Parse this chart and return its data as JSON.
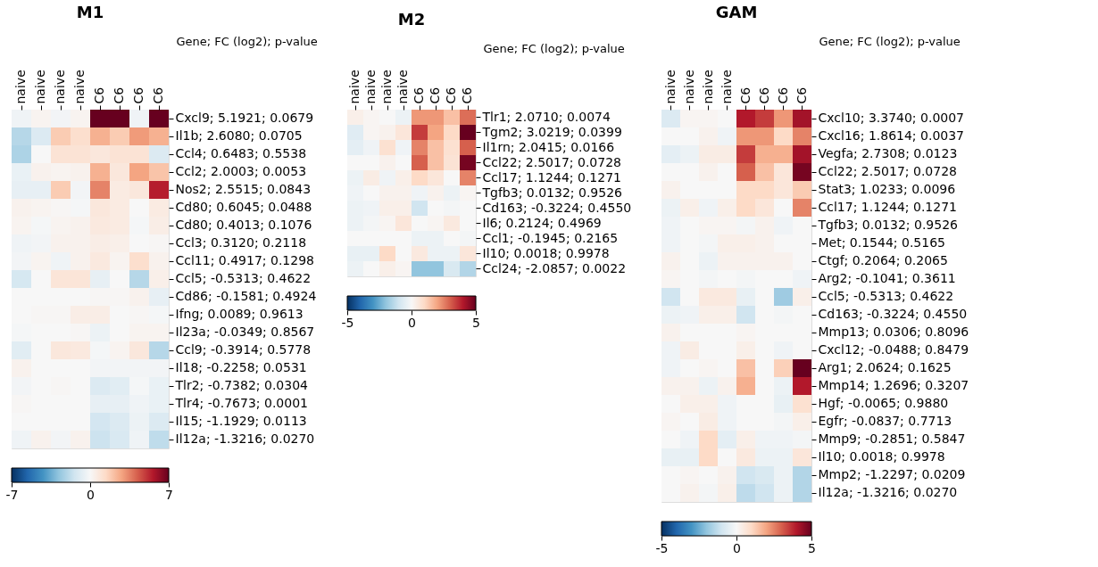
{
  "chart_data": [
    {
      "type": "heatmap",
      "title": "M1",
      "ylabel": "Gene; FC (log2); p-value",
      "categories": [
        "naive",
        "naive",
        "naive",
        "naive",
        "C6",
        "C6",
        "C6",
        "C6"
      ],
      "y_categories": [
        "Cxcl9; 5.1921; 0.0679",
        "Il1b; 2.6080; 0.0705",
        "Ccl4; 0.6483; 0.5538",
        "Ccl2; 2.0003; 0.0053",
        "Nos2; 2.5515; 0.0843",
        "Cd80; 0.6045; 0.0488",
        "Cd80; 0.4013; 0.1076",
        "Ccl3; 0.3120; 0.2118",
        "Ccl11; 0.4917; 0.1298",
        "Ccl5; -0.5313; 0.4622",
        "Cd86; -0.1581; 0.4924",
        "Ifng; 0.0089; 0.9613",
        "Il23a; -0.0349; 0.8567",
        "Ccl9; -0.3914; 0.5778",
        "Il18; -0.2258; 0.0531",
        "Tlr2; -0.7382; 0.0304",
        "Tlr4; -0.7673; 0.0001",
        "Il15; -1.1929; 0.0113",
        "Il12a; -1.3216; 0.0270"
      ],
      "cells": [
        [
          -0.3,
          0.2,
          -0.2,
          0.2,
          7,
          7,
          -0.3,
          7
        ],
        [
          -2,
          -1,
          1.8,
          1.2,
          2.5,
          1.8,
          3,
          2.5
        ],
        [
          -2.2,
          0,
          1,
          1,
          0.8,
          1,
          1,
          -1
        ],
        [
          -0.5,
          0.3,
          0.2,
          0.3,
          2.5,
          0.8,
          2.8,
          2
        ],
        [
          -0.6,
          -0.6,
          1.8,
          -0.2,
          3.5,
          0.6,
          0.8,
          5.5
        ],
        [
          0.3,
          0.2,
          0.1,
          -0.1,
          0.8,
          0.6,
          0,
          0.6
        ],
        [
          0.2,
          -0.1,
          0.2,
          0.3,
          0.7,
          0.6,
          -0.1,
          0.5
        ],
        [
          -0.3,
          -0.2,
          0.3,
          0.3,
          0.5,
          0.4,
          0,
          0.1
        ],
        [
          -0.2,
          0.2,
          -0.3,
          0.3,
          0.7,
          0.2,
          1.2,
          0.3
        ],
        [
          -1.2,
          0,
          0.9,
          0.9,
          -0.6,
          0,
          -2,
          0.4
        ],
        [
          0,
          0,
          0,
          0,
          0.1,
          0.1,
          0.3,
          -0.6
        ],
        [
          0,
          0.1,
          0.1,
          0.5,
          0.5,
          0,
          0.1,
          -0.1
        ],
        [
          -0.1,
          0,
          0,
          0.1,
          -0.4,
          0,
          0.2,
          0.2
        ],
        [
          -0.8,
          0,
          0.8,
          0.7,
          -0.1,
          0.2,
          0.8,
          -2
        ],
        [
          0.3,
          0,
          0,
          0,
          -0.2,
          -0.2,
          -0.2,
          -0.2
        ],
        [
          -0.2,
          0,
          0.1,
          0,
          -1,
          -0.8,
          -0.1,
          -0.5
        ],
        [
          0.1,
          0,
          0,
          0,
          -0.6,
          -0.6,
          -0.3,
          -0.5
        ],
        [
          0,
          0,
          0,
          0,
          -1.3,
          -1,
          -0.4,
          -1
        ],
        [
          -0.3,
          0.3,
          -0.2,
          0.3,
          -1.5,
          -1.1,
          -0.3,
          -1.8
        ]
      ],
      "clim": [
        -7,
        7
      ],
      "cticks": [
        -7,
        0,
        7
      ]
    },
    {
      "type": "heatmap",
      "title": "M2",
      "ylabel": "Gene; FC (log2); p-value",
      "categories": [
        "naive",
        "naive",
        "naive",
        "naive",
        "C6",
        "C6",
        "C6",
        "C6"
      ],
      "y_categories": [
        "Tlr1; 2.0710; 0.0074",
        "Tgm2; 3.0219; 0.0399",
        "Il1rn; 2.0415; 0.0166",
        "Ccl22; 2.5017; 0.0728",
        "Ccl17; 1.1244; 0.1271",
        "Tgfb3; 0.0132; 0.9526",
        "Cd163; -0.3224; 0.4550",
        "Il6; 0.2124; 0.4969",
        "Ccl1; -0.1945; 0.2165",
        "Il10; 0.0018; 0.9978",
        "Ccl24; -2.0857; 0.0022"
      ],
      "cells": [
        [
          0.3,
          0.1,
          0,
          -0.3,
          2.2,
          2.2,
          1.5,
          2.8
        ],
        [
          -0.6,
          0.1,
          0.2,
          0.6,
          3.5,
          2,
          1,
          5
        ],
        [
          -0.5,
          -0.2,
          0.8,
          -0.2,
          2.5,
          1.5,
          0.8,
          3
        ],
        [
          0,
          0,
          0.2,
          0,
          3,
          1.5,
          0.7,
          4.8
        ],
        [
          -0.3,
          0.4,
          -0.2,
          0.3,
          1,
          0.6,
          0,
          2.5
        ],
        [
          -0.2,
          0,
          0.2,
          0.2,
          -0.2,
          0.2,
          -0.3,
          0.1
        ],
        [
          -0.3,
          -0.2,
          0.3,
          0.3,
          -1,
          0,
          -0.1,
          0
        ],
        [
          -0.3,
          -0.1,
          0.1,
          0.6,
          0,
          0.1,
          0.5,
          0
        ],
        [
          0,
          0,
          0,
          0,
          -0.3,
          -0.3,
          0,
          -0.1
        ],
        [
          -0.4,
          -0.4,
          1,
          0,
          0.5,
          -0.3,
          -0.3,
          0.6
        ],
        [
          -0.3,
          0,
          0.3,
          0.1,
          -2,
          -2,
          -0.8,
          -1.5
        ]
      ],
      "clim": [
        -5,
        5
      ],
      "cticks": [
        -5,
        0,
        5
      ]
    },
    {
      "type": "heatmap",
      "title": "GAM",
      "ylabel": "Gene; FC (log2); p-value",
      "categories": [
        "naive",
        "naive",
        "naive",
        "naive",
        "C6",
        "C6",
        "C6",
        "C6"
      ],
      "y_categories": [
        "Cxcl10; 3.3740; 0.0007",
        "Cxcl16; 1.8614; 0.0037",
        "Vegfa; 2.7308; 0.0123",
        "Ccl22; 2.5017; 0.0728",
        "Stat3; 1.0233; 0.0096",
        "Ccl17; 1.1244; 0.1271",
        "Tgfb3; 0.0132; 0.9526",
        "Met; 0.1544; 0.5165",
        "Ctgf; 0.2064; 0.2065",
        "Arg2; -0.1041; 0.3611",
        "Ccl5; -0.5313; 0.4622",
        "Cd163; -0.3224; 0.4550",
        "Mmp13; 0.0306; 0.8096",
        "Cxcl12; -0.0488; 0.8479",
        "Arg1; 2.0624; 0.1625",
        "Mmp14; 1.2696; 0.3207",
        "Hgf; -0.0065; 0.9880",
        "Egfr; -0.0837; 0.7713",
        "Mmp9; -0.2851; 0.5847",
        "Il10; 0.0018; 0.9978",
        "Mmp2; -1.2297; 0.0209",
        "Il12a; -1.3216; 0.0270"
      ],
      "cells": [
        [
          -0.7,
          0.1,
          0.1,
          0,
          4,
          3.5,
          2.2,
          4.2
        ],
        [
          0,
          0,
          0.2,
          -0.2,
          2.2,
          2.2,
          1,
          2.5
        ],
        [
          -0.5,
          -0.3,
          0.4,
          0.4,
          3.5,
          1.8,
          1.8,
          4.2
        ],
        [
          0,
          0,
          0.2,
          0,
          3,
          1.5,
          0.6,
          4.8
        ],
        [
          0.2,
          0,
          0,
          0,
          1,
          1,
          0.6,
          1.3
        ],
        [
          -0.3,
          0.3,
          -0.2,
          0.3,
          1,
          0.6,
          0,
          2.5
        ],
        [
          -0.2,
          0,
          0.1,
          0.1,
          -0.1,
          0.2,
          -0.2,
          0
        ],
        [
          -0.2,
          0,
          -0.1,
          0.3,
          0.3,
          0.2,
          0,
          0
        ],
        [
          0.2,
          0,
          -0.3,
          0.2,
          0.2,
          0.2,
          0.2,
          0
        ],
        [
          0.1,
          0,
          -0.1,
          0,
          -0.1,
          0,
          0,
          -0.2
        ],
        [
          -1,
          0,
          0.5,
          0.5,
          -0.4,
          0,
          -1.8,
          0.3
        ],
        [
          -0.3,
          -0.2,
          0.3,
          0.3,
          -1,
          0,
          -0.1,
          0
        ],
        [
          0.2,
          0,
          0,
          0,
          0.1,
          0,
          0,
          0
        ],
        [
          -0.2,
          0.4,
          0,
          0,
          0.3,
          0,
          -0.2,
          0
        ],
        [
          -0.2,
          0,
          0.1,
          0,
          1.5,
          0,
          1.2,
          5
        ],
        [
          0.2,
          0.2,
          -0.3,
          0.2,
          1.8,
          0,
          -0.3,
          4
        ],
        [
          0,
          0.3,
          0.3,
          -0.2,
          0,
          0,
          -0.4,
          0.8
        ],
        [
          0.1,
          0,
          0.4,
          -0.2,
          0,
          0,
          -0.1,
          0.3
        ],
        [
          0,
          -0.2,
          1,
          -0.5,
          0.3,
          -0.2,
          -0.2,
          -0.1
        ],
        [
          -0.4,
          -0.4,
          1,
          0,
          0.5,
          -0.3,
          -0.3,
          0.6
        ],
        [
          0,
          0.1,
          0,
          0.2,
          -1,
          -0.8,
          -0.3,
          -1.5
        ],
        [
          0,
          0.2,
          -0.1,
          0.3,
          -1.3,
          -1,
          -0.3,
          -1.5
        ]
      ],
      "clim": [
        -5,
        5
      ],
      "cticks": [
        -5,
        0,
        5
      ]
    }
  ]
}
